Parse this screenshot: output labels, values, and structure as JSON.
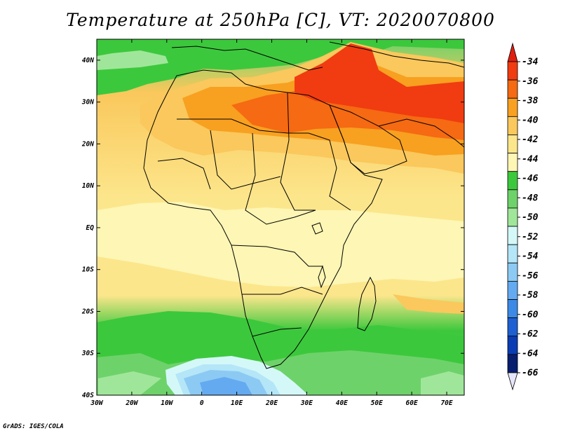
{
  "title": "Temperature at 250hPa [C], VT: 2020070800",
  "credit": "GrADS: IGES/COLA",
  "map": {
    "lon_range": [
      -30,
      75
    ],
    "lat_range": [
      -40,
      45
    ],
    "lon_ticks": [
      {
        "value": -30,
        "label": "30W"
      },
      {
        "value": -20,
        "label": "20W"
      },
      {
        "value": -10,
        "label": "10W"
      },
      {
        "value": 0,
        "label": "0"
      },
      {
        "value": 10,
        "label": "10E"
      },
      {
        "value": 20,
        "label": "20E"
      },
      {
        "value": 30,
        "label": "30E"
      },
      {
        "value": 40,
        "label": "40E"
      },
      {
        "value": 50,
        "label": "50E"
      },
      {
        "value": 60,
        "label": "60E"
      },
      {
        "value": 70,
        "label": "70E"
      }
    ],
    "lat_ticks": [
      {
        "value": 40,
        "label": "40N"
      },
      {
        "value": 30,
        "label": "30N"
      },
      {
        "value": 20,
        "label": "20N"
      },
      {
        "value": 10,
        "label": "10N"
      },
      {
        "value": 0,
        "label": "EQ"
      },
      {
        "value": -10,
        "label": "10S"
      },
      {
        "value": -20,
        "label": "20S"
      },
      {
        "value": -30,
        "label": "30S"
      },
      {
        "value": -40,
        "label": "40S"
      }
    ]
  },
  "colorbar": {
    "labels": [
      "-34",
      "-36",
      "-38",
      "-40",
      "-42",
      "-44",
      "-46",
      "-48",
      "-50",
      "-52",
      "-54",
      "-56",
      "-58",
      "-60",
      "-62",
      "-64",
      "-66"
    ],
    "colors": [
      "#f03c10",
      "#f56a12",
      "#f8a020",
      "#fac85c",
      "#fce68c",
      "#fdf6b4",
      "#3cc83c",
      "#6ed26a",
      "#a0e69a",
      "#d4f8f8",
      "#b4e6f8",
      "#8ccaf4",
      "#64aaf0",
      "#3c8ae6",
      "#1e60d2",
      "#0a3cb4",
      "#081e6e"
    ],
    "top_arrow_color": "#e01e10",
    "bottom_arrow_color": "#e6e6fa"
  }
}
